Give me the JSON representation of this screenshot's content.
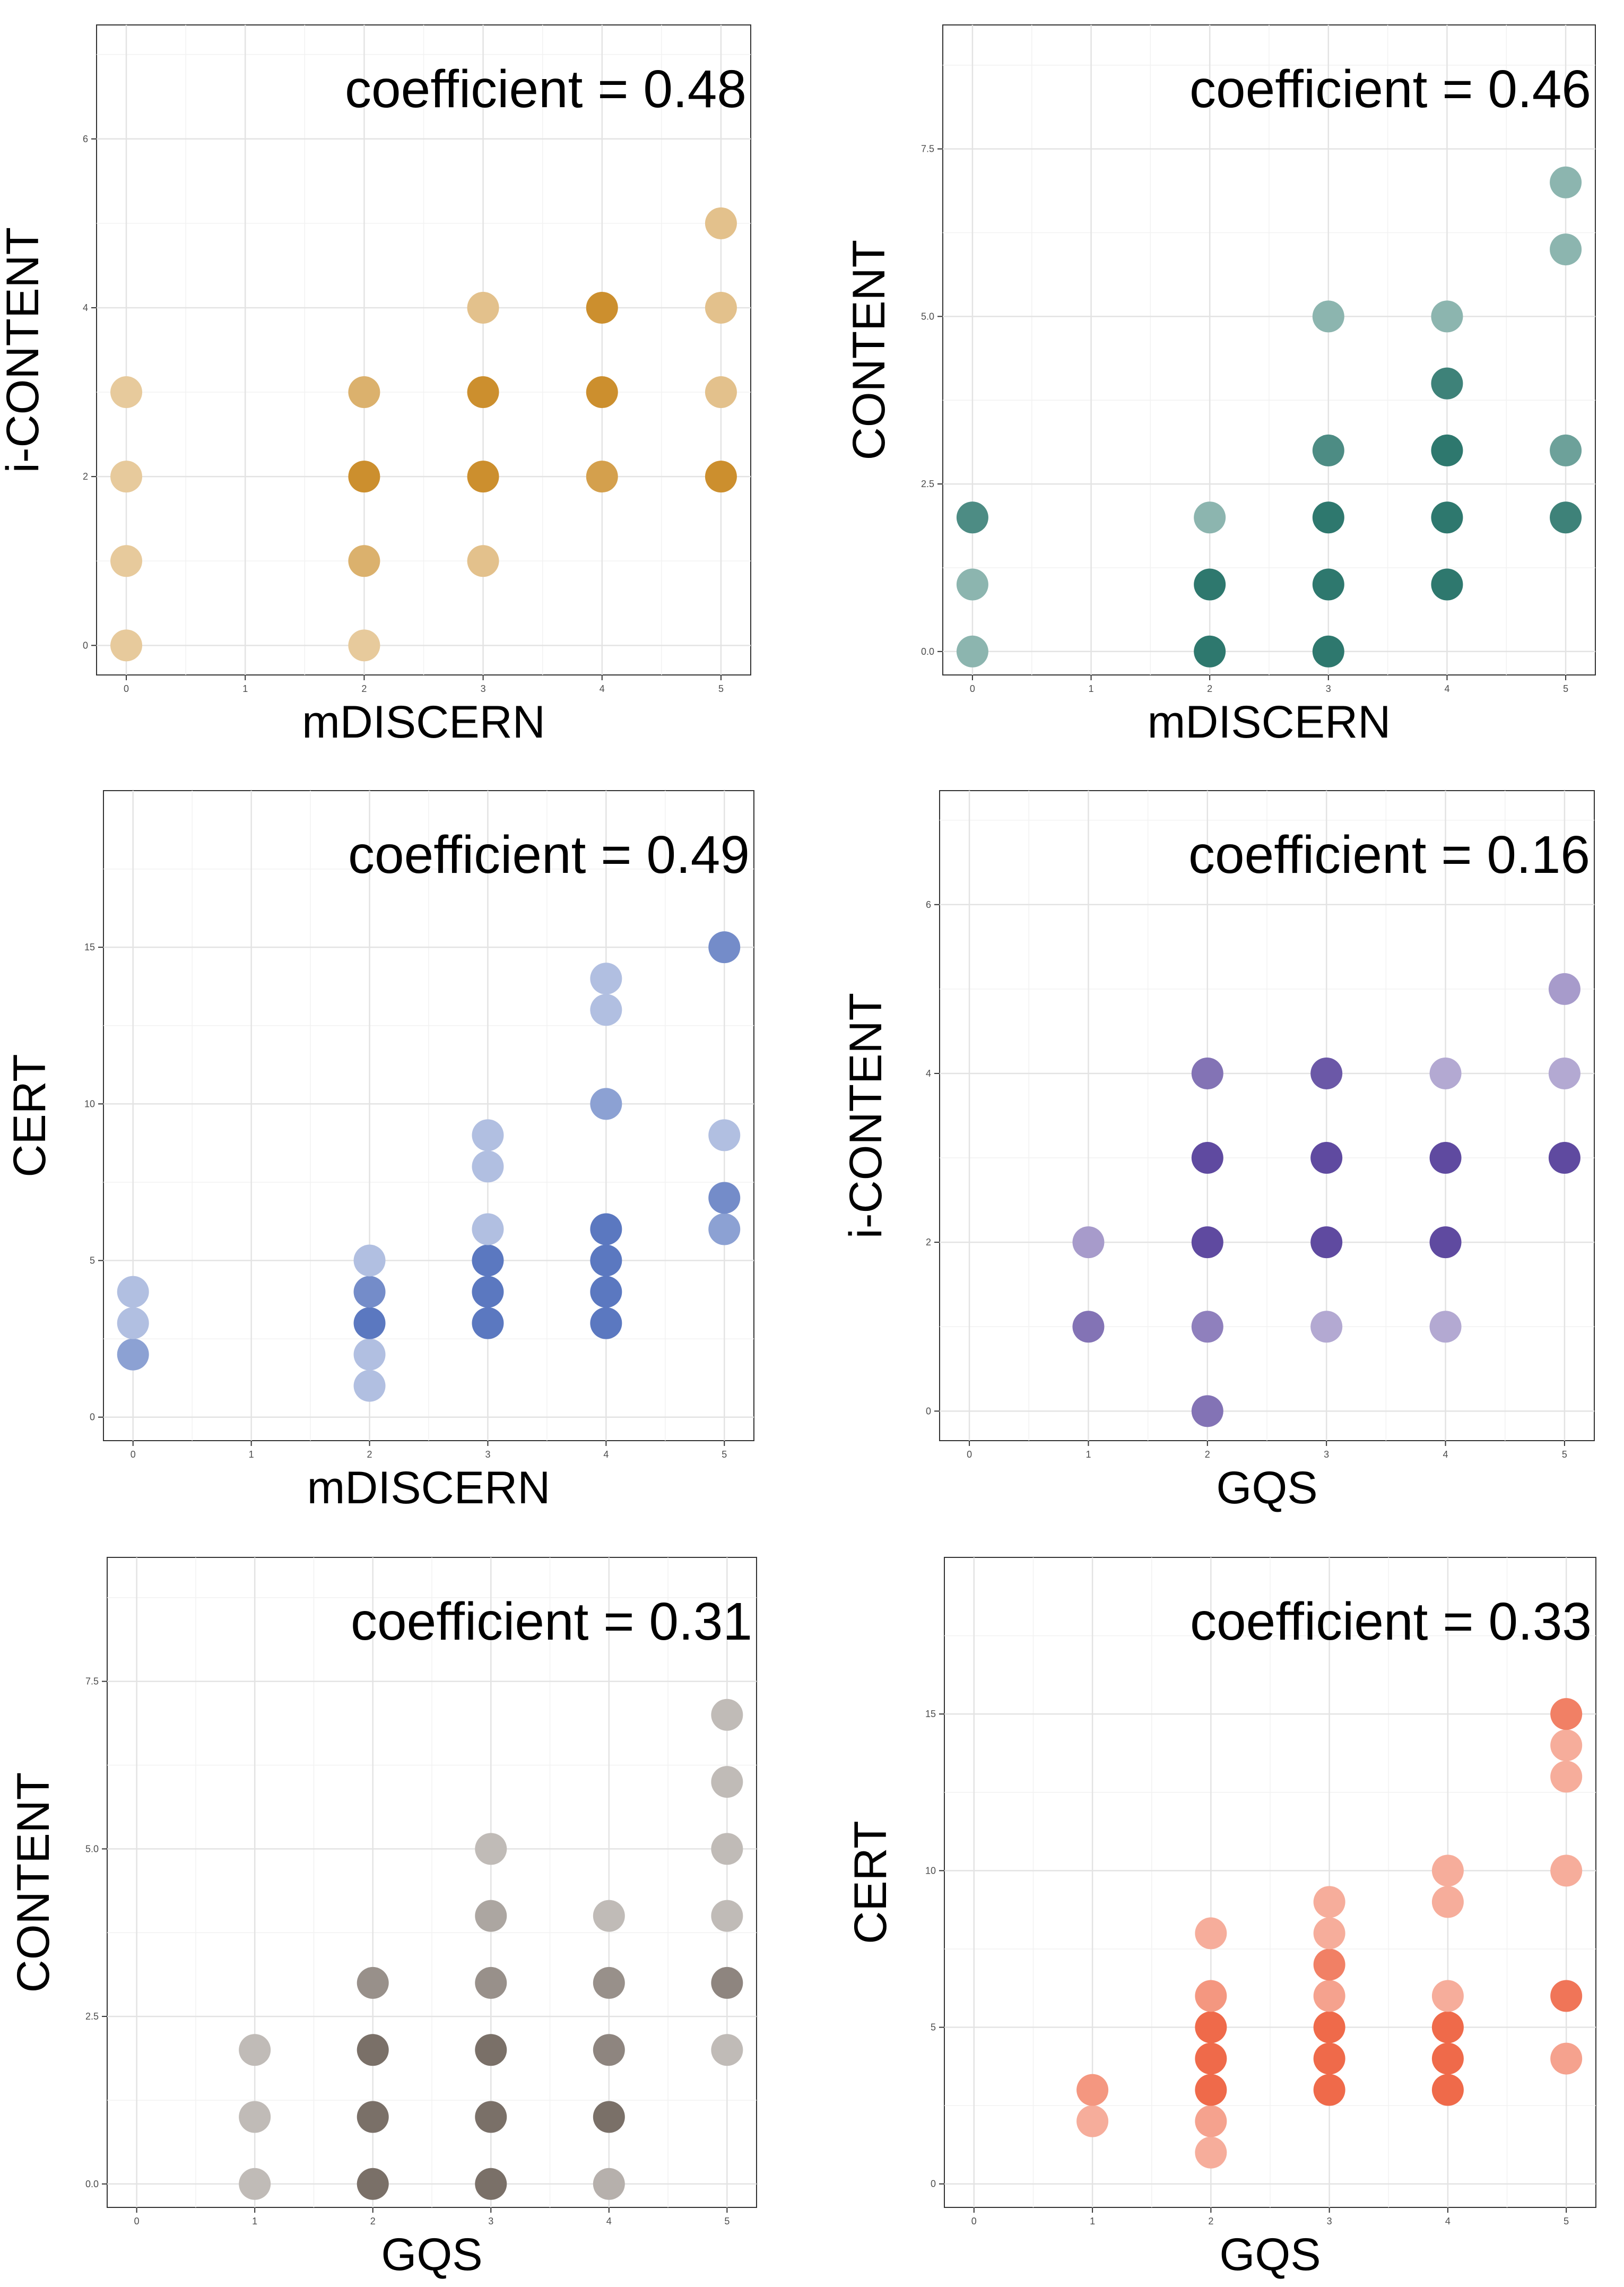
{
  "chart_data": [
    {
      "type": "scatter",
      "xlabel": "mDISCERN",
      "ylabel": "i-CONTENT",
      "annotation": "coefficient = 0.48",
      "color": "#cc8f2e",
      "xlim": [
        -0.25,
        5.25
      ],
      "ylim": [
        -0.35,
        7.35
      ],
      "xticks": [
        0,
        1,
        2,
        3,
        4,
        5
      ],
      "xtick_labels": [
        "0",
        "1",
        "2",
        "3",
        "4",
        "5"
      ],
      "yticks": [
        0,
        2,
        4,
        6
      ],
      "ytick_labels": [
        "0",
        "2",
        "4",
        "6"
      ],
      "points": [
        {
          "x": 0,
          "y": 0,
          "intensity": 0.3
        },
        {
          "x": 0,
          "y": 1,
          "intensity": 0.3
        },
        {
          "x": 0,
          "y": 2,
          "intensity": 0.3
        },
        {
          "x": 0,
          "y": 3,
          "intensity": 0.3
        },
        {
          "x": 2,
          "y": 0,
          "intensity": 0.3
        },
        {
          "x": 2,
          "y": 1,
          "intensity": 0.6
        },
        {
          "x": 2,
          "y": 2,
          "intensity": 1.0
        },
        {
          "x": 2,
          "y": 3,
          "intensity": 0.6
        },
        {
          "x": 3,
          "y": 1,
          "intensity": 0.4
        },
        {
          "x": 3,
          "y": 2,
          "intensity": 1.0
        },
        {
          "x": 3,
          "y": 3,
          "intensity": 1.0
        },
        {
          "x": 3,
          "y": 4,
          "intensity": 0.4
        },
        {
          "x": 4,
          "y": 2,
          "intensity": 0.8
        },
        {
          "x": 4,
          "y": 3,
          "intensity": 1.0
        },
        {
          "x": 4,
          "y": 4,
          "intensity": 1.0
        },
        {
          "x": 5,
          "y": 2,
          "intensity": 1.0
        },
        {
          "x": 5,
          "y": 3,
          "intensity": 0.4
        },
        {
          "x": 5,
          "y": 4,
          "intensity": 0.4
        },
        {
          "x": 5,
          "y": 5,
          "intensity": 0.4
        }
      ]
    },
    {
      "type": "scatter",
      "xlabel": "mDISCERN",
      "ylabel": "CONTENT",
      "annotation": "coefficient = 0.46",
      "color": "#2e786e",
      "xlim": [
        -0.25,
        5.25
      ],
      "ylim": [
        -0.35,
        9.35
      ],
      "xticks": [
        0,
        1,
        2,
        3,
        4,
        5
      ],
      "xtick_labels": [
        "0",
        "1",
        "2",
        "3",
        "4",
        "5"
      ],
      "yticks": [
        0,
        2.5,
        5,
        7.5
      ],
      "ytick_labels": [
        "0.0",
        "2.5",
        "5.0",
        "7.5"
      ],
      "points": [
        {
          "x": 0,
          "y": 0,
          "intensity": 0.4
        },
        {
          "x": 0,
          "y": 1,
          "intensity": 0.4
        },
        {
          "x": 0,
          "y": 2,
          "intensity": 0.8
        },
        {
          "x": 2,
          "y": 0,
          "intensity": 1.0
        },
        {
          "x": 2,
          "y": 1,
          "intensity": 1.0
        },
        {
          "x": 2,
          "y": 2,
          "intensity": 0.4
        },
        {
          "x": 3,
          "y": 0,
          "intensity": 1.0
        },
        {
          "x": 3,
          "y": 1,
          "intensity": 1.0
        },
        {
          "x": 3,
          "y": 2,
          "intensity": 1.0
        },
        {
          "x": 3,
          "y": 3,
          "intensity": 0.8
        },
        {
          "x": 3,
          "y": 5,
          "intensity": 0.4
        },
        {
          "x": 4,
          "y": 1,
          "intensity": 1.0
        },
        {
          "x": 4,
          "y": 2,
          "intensity": 1.0
        },
        {
          "x": 4,
          "y": 3,
          "intensity": 1.0
        },
        {
          "x": 4,
          "y": 4,
          "intensity": 0.9
        },
        {
          "x": 4,
          "y": 5,
          "intensity": 0.4
        },
        {
          "x": 5,
          "y": 2,
          "intensity": 0.9
        },
        {
          "x": 5,
          "y": 3,
          "intensity": 0.6
        },
        {
          "x": 5,
          "y": 6,
          "intensity": 0.4
        },
        {
          "x": 5,
          "y": 7,
          "intensity": 0.4
        }
      ]
    },
    {
      "type": "scatter",
      "xlabel": "mDISCERN",
      "ylabel": "CERT",
      "annotation": "coefficient = 0.49",
      "color": "#5b78c0",
      "xlim": [
        -0.25,
        5.25
      ],
      "ylim": [
        -0.75,
        20.0
      ],
      "xticks": [
        0,
        1,
        2,
        3,
        4,
        5
      ],
      "xtick_labels": [
        "0",
        "1",
        "2",
        "3",
        "4",
        "5"
      ],
      "yticks": [
        0,
        5,
        10,
        15
      ],
      "ytick_labels": [
        "0",
        "5",
        "10",
        "15"
      ],
      "points": [
        {
          "x": 0,
          "y": 2,
          "intensity": 0.6
        },
        {
          "x": 0,
          "y": 3,
          "intensity": 0.3
        },
        {
          "x": 0,
          "y": 4,
          "intensity": 0.3
        },
        {
          "x": 2,
          "y": 1,
          "intensity": 0.3
        },
        {
          "x": 2,
          "y": 2,
          "intensity": 0.3
        },
        {
          "x": 2,
          "y": 3,
          "intensity": 1.0
        },
        {
          "x": 2,
          "y": 4,
          "intensity": 0.8
        },
        {
          "x": 2,
          "y": 5,
          "intensity": 0.3
        },
        {
          "x": 3,
          "y": 3,
          "intensity": 1.0
        },
        {
          "x": 3,
          "y": 4,
          "intensity": 1.0
        },
        {
          "x": 3,
          "y": 5,
          "intensity": 1.0
        },
        {
          "x": 3,
          "y": 6,
          "intensity": 0.3
        },
        {
          "x": 3,
          "y": 8,
          "intensity": 0.3
        },
        {
          "x": 3,
          "y": 9,
          "intensity": 0.3
        },
        {
          "x": 4,
          "y": 3,
          "intensity": 1.0
        },
        {
          "x": 4,
          "y": 4,
          "intensity": 1.0
        },
        {
          "x": 4,
          "y": 5,
          "intensity": 1.0
        },
        {
          "x": 4,
          "y": 6,
          "intensity": 1.0
        },
        {
          "x": 4,
          "y": 10,
          "intensity": 0.6
        },
        {
          "x": 4,
          "y": 13,
          "intensity": 0.3
        },
        {
          "x": 4,
          "y": 14,
          "intensity": 0.3
        },
        {
          "x": 5,
          "y": 6,
          "intensity": 0.6
        },
        {
          "x": 5,
          "y": 7,
          "intensity": 0.8
        },
        {
          "x": 5,
          "y": 9,
          "intensity": 0.3
        },
        {
          "x": 5,
          "y": 15,
          "intensity": 0.8
        }
      ]
    },
    {
      "type": "scatter",
      "xlabel": "GQS",
      "ylabel": "i-CONTENT",
      "annotation": "coefficient = 0.16",
      "color": "#5f4aa0",
      "xlim": [
        -0.25,
        5.25
      ],
      "ylim": [
        -0.35,
        7.35
      ],
      "xticks": [
        0,
        1,
        2,
        3,
        4,
        5
      ],
      "xtick_labels": [
        "0",
        "1",
        "2",
        "3",
        "4",
        "5"
      ],
      "yticks": [
        0,
        2,
        4,
        6
      ],
      "ytick_labels": [
        "0",
        "2",
        "4",
        "6"
      ],
      "points": [
        {
          "x": 1,
          "y": 1,
          "intensity": 0.7
        },
        {
          "x": 1,
          "y": 2,
          "intensity": 0.4
        },
        {
          "x": 2,
          "y": 0,
          "intensity": 0.7
        },
        {
          "x": 2,
          "y": 1,
          "intensity": 0.6
        },
        {
          "x": 2,
          "y": 2,
          "intensity": 1.0
        },
        {
          "x": 2,
          "y": 3,
          "intensity": 1.0
        },
        {
          "x": 2,
          "y": 4,
          "intensity": 0.7
        },
        {
          "x": 3,
          "y": 1,
          "intensity": 0.3
        },
        {
          "x": 3,
          "y": 2,
          "intensity": 1.0
        },
        {
          "x": 3,
          "y": 3,
          "intensity": 1.0
        },
        {
          "x": 3,
          "y": 4,
          "intensity": 0.9
        },
        {
          "x": 4,
          "y": 1,
          "intensity": 0.3
        },
        {
          "x": 4,
          "y": 2,
          "intensity": 1.0
        },
        {
          "x": 4,
          "y": 3,
          "intensity": 1.0
        },
        {
          "x": 4,
          "y": 4,
          "intensity": 0.3
        },
        {
          "x": 5,
          "y": 3,
          "intensity": 1.0
        },
        {
          "x": 5,
          "y": 4,
          "intensity": 0.3
        },
        {
          "x": 5,
          "y": 5,
          "intensity": 0.4
        }
      ]
    },
    {
      "type": "scatter",
      "xlabel": "GQS",
      "ylabel": "CONTENT",
      "annotation": "coefficient = 0.31",
      "color": "#7a7068",
      "xlim": [
        -0.25,
        5.25
      ],
      "ylim": [
        -0.35,
        9.35
      ],
      "xticks": [
        0,
        1,
        2,
        3,
        4,
        5
      ],
      "xtick_labels": [
        "0",
        "1",
        "2",
        "3",
        "4",
        "5"
      ],
      "yticks": [
        0,
        2.5,
        5,
        7.5
      ],
      "ytick_labels": [
        "0.0",
        "2.5",
        "5.0",
        "7.5"
      ],
      "points": [
        {
          "x": 1,
          "y": 0,
          "intensity": 0.3
        },
        {
          "x": 1,
          "y": 1,
          "intensity": 0.3
        },
        {
          "x": 1,
          "y": 2,
          "intensity": 0.3
        },
        {
          "x": 2,
          "y": 0,
          "intensity": 1.0
        },
        {
          "x": 2,
          "y": 1,
          "intensity": 1.0
        },
        {
          "x": 2,
          "y": 2,
          "intensity": 1.0
        },
        {
          "x": 2,
          "y": 3,
          "intensity": 0.7
        },
        {
          "x": 3,
          "y": 0,
          "intensity": 1.0
        },
        {
          "x": 3,
          "y": 1,
          "intensity": 1.0
        },
        {
          "x": 3,
          "y": 2,
          "intensity": 1.0
        },
        {
          "x": 3,
          "y": 3,
          "intensity": 0.7
        },
        {
          "x": 3,
          "y": 4,
          "intensity": 0.5
        },
        {
          "x": 3,
          "y": 5,
          "intensity": 0.3
        },
        {
          "x": 4,
          "y": 0,
          "intensity": 0.4
        },
        {
          "x": 4,
          "y": 1,
          "intensity": 1.0
        },
        {
          "x": 4,
          "y": 2,
          "intensity": 0.8
        },
        {
          "x": 4,
          "y": 3,
          "intensity": 0.7
        },
        {
          "x": 4,
          "y": 4,
          "intensity": 0.3
        },
        {
          "x": 5,
          "y": 2,
          "intensity": 0.3
        },
        {
          "x": 5,
          "y": 3,
          "intensity": 0.8
        },
        {
          "x": 5,
          "y": 4,
          "intensity": 0.3
        },
        {
          "x": 5,
          "y": 5,
          "intensity": 0.3
        },
        {
          "x": 5,
          "y": 6,
          "intensity": 0.3
        },
        {
          "x": 5,
          "y": 7,
          "intensity": 0.3
        }
      ]
    },
    {
      "type": "scatter",
      "xlabel": "GQS",
      "ylabel": "CERT",
      "annotation": "coefficient = 0.33",
      "color": "#ef6a4a",
      "xlim": [
        -0.25,
        5.25
      ],
      "ylim": [
        -0.75,
        20.0
      ],
      "xticks": [
        0,
        1,
        2,
        3,
        4,
        5
      ],
      "xtick_labels": [
        "0",
        "1",
        "2",
        "3",
        "4",
        "5"
      ],
      "yticks": [
        0,
        5,
        10,
        15
      ],
      "ytick_labels": [
        "0",
        "5",
        "10",
        "15"
      ],
      "points": [
        {
          "x": 1,
          "y": 2,
          "intensity": 0.4
        },
        {
          "x": 1,
          "y": 3,
          "intensity": 0.6
        },
        {
          "x": 2,
          "y": 1,
          "intensity": 0.4
        },
        {
          "x": 2,
          "y": 2,
          "intensity": 0.5
        },
        {
          "x": 2,
          "y": 3,
          "intensity": 1.0
        },
        {
          "x": 2,
          "y": 4,
          "intensity": 1.0
        },
        {
          "x": 2,
          "y": 5,
          "intensity": 1.0
        },
        {
          "x": 2,
          "y": 6,
          "intensity": 0.6
        },
        {
          "x": 2,
          "y": 8,
          "intensity": 0.4
        },
        {
          "x": 3,
          "y": 3,
          "intensity": 1.0
        },
        {
          "x": 3,
          "y": 4,
          "intensity": 1.0
        },
        {
          "x": 3,
          "y": 5,
          "intensity": 1.0
        },
        {
          "x": 3,
          "y": 6,
          "intensity": 0.5
        },
        {
          "x": 3,
          "y": 7,
          "intensity": 0.8
        },
        {
          "x": 3,
          "y": 8,
          "intensity": 0.4
        },
        {
          "x": 3,
          "y": 9,
          "intensity": 0.4
        },
        {
          "x": 4,
          "y": 3,
          "intensity": 1.0
        },
        {
          "x": 4,
          "y": 4,
          "intensity": 1.0
        },
        {
          "x": 4,
          "y": 5,
          "intensity": 1.0
        },
        {
          "x": 4,
          "y": 6,
          "intensity": 0.4
        },
        {
          "x": 4,
          "y": 9,
          "intensity": 0.4
        },
        {
          "x": 4,
          "y": 10,
          "intensity": 0.4
        },
        {
          "x": 5,
          "y": 4,
          "intensity": 0.5
        },
        {
          "x": 5,
          "y": 6,
          "intensity": 0.9
        },
        {
          "x": 5,
          "y": 10,
          "intensity": 0.4
        },
        {
          "x": 5,
          "y": 13,
          "intensity": 0.4
        },
        {
          "x": 5,
          "y": 14,
          "intensity": 0.4
        },
        {
          "x": 5,
          "y": 15,
          "intensity": 0.8
        }
      ]
    }
  ]
}
